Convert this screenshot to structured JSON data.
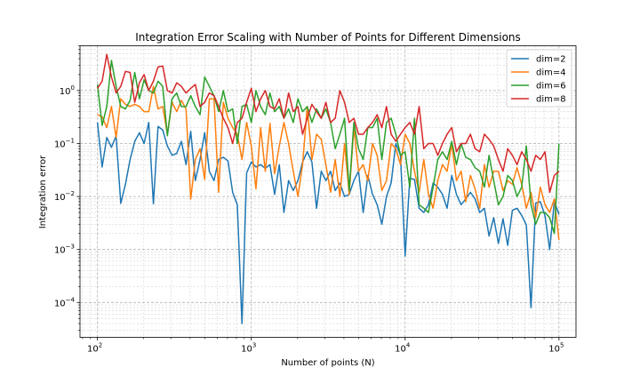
{
  "chart_data": {
    "type": "line",
    "title": "Integration Error Scaling with Number of Points for Different Dimensions",
    "xlabel": "Number of points (N)",
    "ylabel": "Integration error",
    "xscale": "log",
    "yscale": "log",
    "xlim": [
      77,
      129000
    ],
    "ylim": [
      2.2e-05,
      7.0
    ],
    "x_ticks": [
      {
        "value": 100,
        "base": "10",
        "exp": "2"
      },
      {
        "value": 1000,
        "base": "10",
        "exp": "3"
      },
      {
        "value": 10000,
        "base": "10",
        "exp": "4"
      },
      {
        "value": 100000,
        "base": "10",
        "exp": "5"
      }
    ],
    "y_ticks": [
      {
        "value": 0.0001,
        "base": "10",
        "exp": "−4"
      },
      {
        "value": 0.001,
        "base": "10",
        "exp": "−3"
      },
      {
        "value": 0.01,
        "base": "10",
        "exp": "−2"
      },
      {
        "value": 0.1,
        "base": "10",
        "exp": "−1"
      },
      {
        "value": 1,
        "base": "10",
        "exp": "0"
      }
    ],
    "grid": true,
    "legend_position": "top-right",
    "x_range": {
      "start": 100,
      "end": 100000,
      "count": 100
    },
    "series": [
      {
        "name": "dim=2",
        "color": "#1f77b4",
        "values": [
          0.25,
          0.036,
          0.13,
          0.085,
          0.14,
          0.0074,
          0.017,
          0.05,
          0.11,
          0.16,
          0.1,
          0.25,
          0.0073,
          0.21,
          0.18,
          0.09,
          0.06,
          0.065,
          0.11,
          0.04,
          0.17,
          0.02,
          0.05,
          0.16,
          0.03,
          0.02,
          0.05,
          0.055,
          0.047,
          0.012,
          0.007,
          4e-05,
          0.028,
          0.045,
          0.036,
          0.04,
          0.034,
          0.04,
          0.011,
          0.04,
          0.005,
          0.02,
          0.013,
          0.02,
          0.045,
          0.07,
          0.045,
          0.006,
          0.03,
          0.02,
          0.03,
          0.013,
          0.018,
          0.01,
          0.011,
          0.02,
          0.03,
          0.005,
          0.025,
          0.011,
          0.007,
          0.003,
          0.01,
          0.018,
          0.1,
          0.06,
          0.00075,
          0.022,
          0.021,
          0.006,
          0.005,
          0.007,
          0.018,
          0.015,
          0.011,
          0.006,
          0.025,
          0.011,
          0.007,
          0.009,
          0.012,
          0.009,
          0.005,
          0.006,
          0.0018,
          0.004,
          0.0013,
          0.0038,
          0.0012,
          0.0055,
          0.006,
          0.0044,
          0.0029,
          8e-05,
          0.0075,
          0.008,
          0.0043,
          0.001,
          0.008,
          0.0046
        ]
      },
      {
        "name": "dim=4",
        "color": "#ff7f0e",
        "values": [
          0.35,
          0.32,
          0.2,
          0.5,
          0.13,
          0.7,
          0.55,
          0.5,
          0.55,
          0.5,
          0.4,
          0.4,
          1.2,
          0.45,
          0.5,
          0.15,
          0.6,
          0.4,
          0.65,
          0.45,
          0.009,
          0.05,
          0.08,
          0.021,
          0.7,
          0.7,
          0.012,
          0.6,
          0.3,
          0.2,
          0.15,
          0.05,
          0.25,
          0.09,
          0.014,
          0.2,
          0.03,
          0.24,
          0.027,
          0.09,
          0.25,
          0.1,
          0.03,
          0.01,
          0.04,
          0.5,
          0.05,
          0.15,
          0.12,
          0.04,
          0.012,
          0.05,
          0.01,
          0.1,
          0.011,
          0.2,
          0.03,
          0.04,
          0.02,
          0.1,
          0.06,
          0.013,
          0.02,
          0.1,
          0.08,
          0.04,
          0.15,
          0.1,
          0.03,
          0.012,
          0.05,
          0.011,
          0.006,
          0.02,
          0.04,
          0.03,
          0.1,
          0.02,
          0.03,
          0.008,
          0.025,
          0.014,
          0.006,
          0.04,
          0.015,
          0.03,
          0.03,
          0.013,
          0.02,
          0.017,
          0.035,
          0.017,
          0.006,
          0.012,
          0.004,
          0.015,
          0.007,
          0.005,
          0.009,
          0.0015
        ]
      },
      {
        "name": "dim=6",
        "color": "#2ca02c",
        "values": [
          1.3,
          0.22,
          0.5,
          3.7,
          1.2,
          0.5,
          0.45,
          0.65,
          2.2,
          0.7,
          1.6,
          1.0,
          0.9,
          1.5,
          1.2,
          0.14,
          0.7,
          0.9,
          0.5,
          0.5,
          0.8,
          0.5,
          0.35,
          1.8,
          1.2,
          0.8,
          0.4,
          1.0,
          0.4,
          0.45,
          0.1,
          0.5,
          0.55,
          0.25,
          1.0,
          0.5,
          0.35,
          0.9,
          0.4,
          0.5,
          0.3,
          0.45,
          0.25,
          0.7,
          0.4,
          0.5,
          0.25,
          0.45,
          0.3,
          0.45,
          0.25,
          0.08,
          0.15,
          0.3,
          0.013,
          0.25,
          0.08,
          0.05,
          0.2,
          0.2,
          0.3,
          0.05,
          0.25,
          0.3,
          0.15,
          0.06,
          0.07,
          0.015,
          0.3,
          0.007,
          0.006,
          0.005,
          0.015,
          0.05,
          0.07,
          0.05,
          0.11,
          0.04,
          0.1,
          0.055,
          0.05,
          0.035,
          0.03,
          0.015,
          0.06,
          0.02,
          0.007,
          0.01,
          0.025,
          0.02,
          0.01,
          0.015,
          0.09,
          0.007,
          0.003,
          0.005,
          0.005,
          0.004,
          0.002,
          0.1
        ]
      },
      {
        "name": "dim=8",
        "color": "#d62728",
        "values": [
          1.1,
          1.5,
          4.8,
          1.8,
          0.9,
          1.2,
          2.3,
          2.2,
          0.6,
          1.4,
          2.0,
          1.0,
          1.5,
          2.8,
          2.9,
          1.0,
          0.9,
          1.4,
          1.2,
          0.9,
          1.1,
          1.3,
          0.5,
          0.6,
          0.9,
          0.8,
          0.5,
          0.3,
          0.2,
          0.1,
          0.25,
          0.3,
          0.6,
          1.1,
          0.4,
          0.7,
          1.0,
          0.5,
          0.45,
          0.7,
          0.3,
          0.9,
          0.4,
          0.5,
          0.15,
          0.3,
          0.55,
          0.4,
          0.3,
          0.6,
          0.25,
          0.3,
          1.0,
          0.6,
          0.25,
          0.3,
          0.15,
          0.15,
          0.2,
          0.25,
          0.35,
          0.2,
          0.5,
          0.15,
          0.11,
          0.15,
          0.2,
          0.25,
          0.15,
          0.5,
          0.08,
          0.1,
          0.1,
          0.06,
          0.1,
          0.15,
          0.2,
          0.07,
          0.1,
          0.1,
          0.15,
          0.08,
          0.07,
          0.15,
          0.12,
          0.09,
          0.05,
          0.03,
          0.08,
          0.06,
          0.04,
          0.07,
          0.05,
          0.03,
          0.06,
          0.05,
          0.07,
          0.012,
          0.025,
          0.03
        ]
      }
    ]
  }
}
